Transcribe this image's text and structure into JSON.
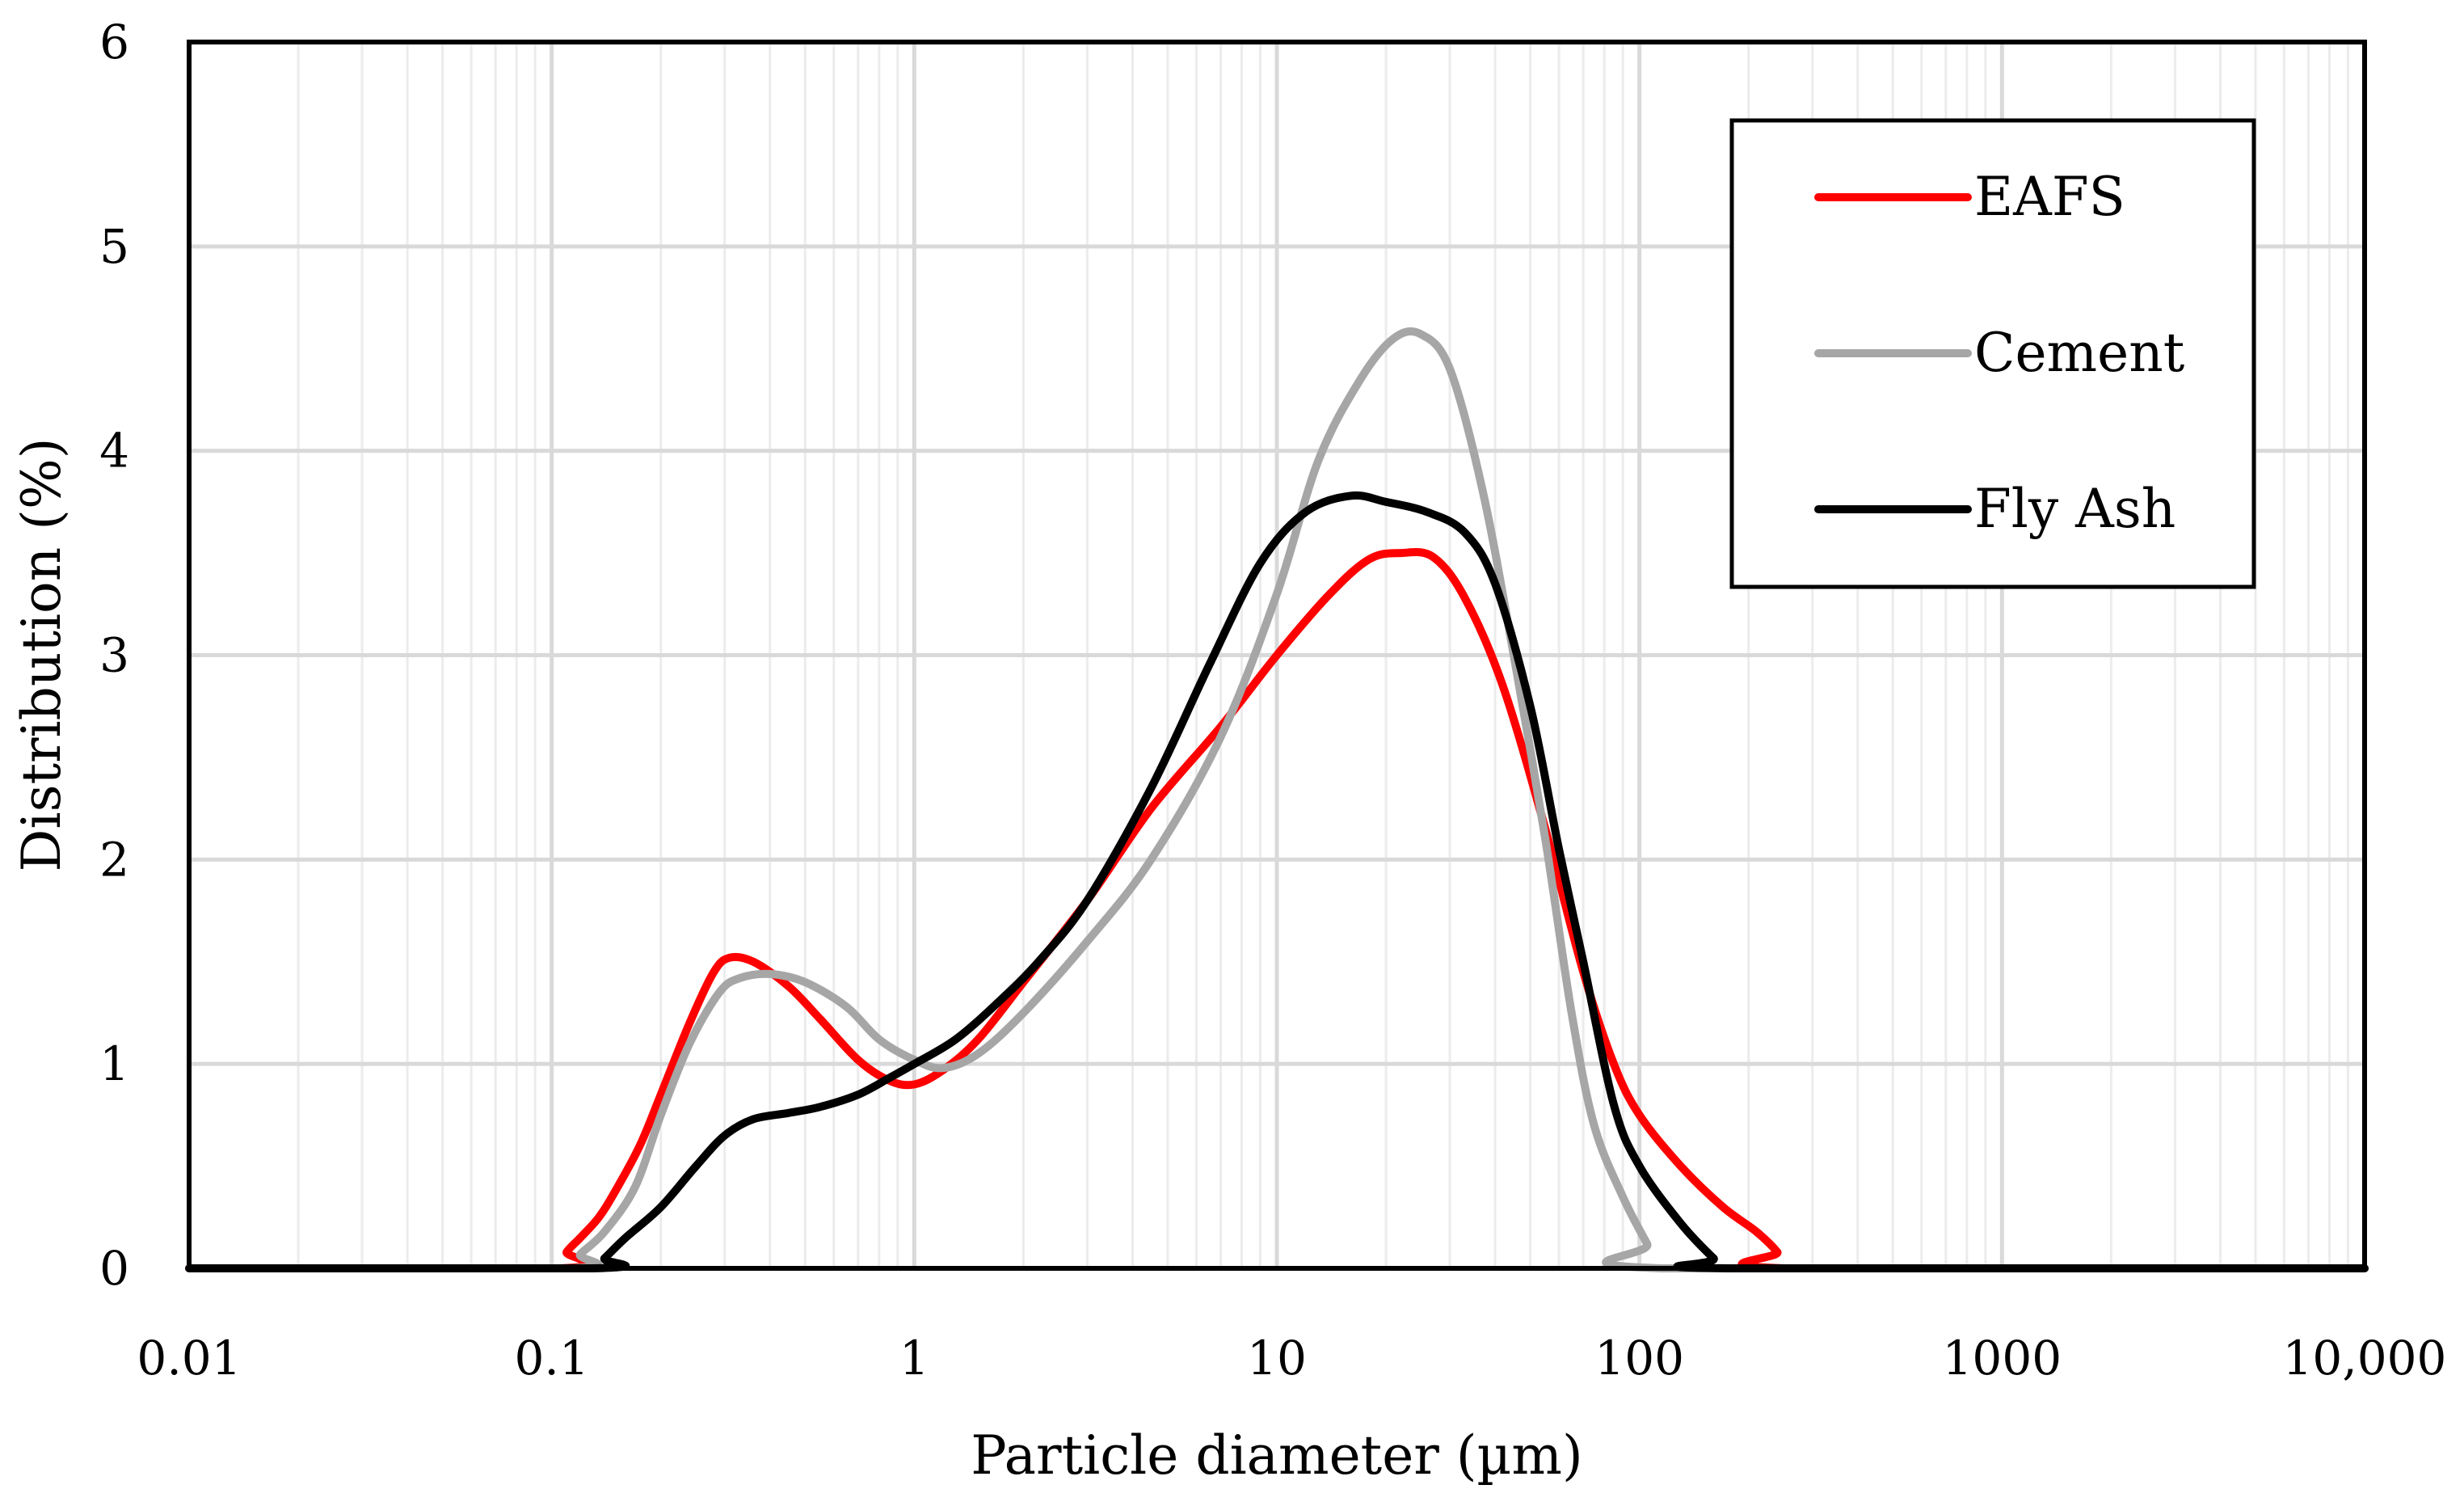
{
  "chart_data": {
    "type": "line",
    "title": "",
    "xlabel": "Particle diameter (µm)",
    "ylabel": "Distribution (%)",
    "xscale": "log",
    "xlim": [
      0.01,
      10000
    ],
    "ylim": [
      0,
      6
    ],
    "grid": true,
    "legend_position": "top-right",
    "x_ticks": [
      {
        "value": 0.01,
        "label": "0.01"
      },
      {
        "value": 0.1,
        "label": "0.1"
      },
      {
        "value": 1,
        "label": "1"
      },
      {
        "value": 10,
        "label": "10"
      },
      {
        "value": 100,
        "label": "100"
      },
      {
        "value": 1000,
        "label": "1000"
      },
      {
        "value": 10000,
        "label": "10,000"
      }
    ],
    "y_ticks": [
      {
        "value": 0,
        "label": "0"
      },
      {
        "value": 1,
        "label": "1"
      },
      {
        "value": 2,
        "label": "2"
      },
      {
        "value": 3,
        "label": "3"
      },
      {
        "value": 4,
        "label": "4"
      },
      {
        "value": 5,
        "label": "5"
      },
      {
        "value": 6,
        "label": "6"
      }
    ],
    "series": [
      {
        "name": "EAFS",
        "color": "#ff0000",
        "points": [
          [
            0.01,
            0
          ],
          [
            0.105,
            0
          ],
          [
            0.11,
            0.08
          ],
          [
            0.12,
            0.15
          ],
          [
            0.135,
            0.25
          ],
          [
            0.15,
            0.38
          ],
          [
            0.175,
            0.6
          ],
          [
            0.2,
            0.85
          ],
          [
            0.24,
            1.2
          ],
          [
            0.28,
            1.45
          ],
          [
            0.31,
            1.52
          ],
          [
            0.36,
            1.5
          ],
          [
            0.45,
            1.38
          ],
          [
            0.55,
            1.22
          ],
          [
            0.7,
            1.02
          ],
          [
            0.85,
            0.92
          ],
          [
            1.0,
            0.9
          ],
          [
            1.2,
            0.97
          ],
          [
            1.5,
            1.12
          ],
          [
            2.0,
            1.4
          ],
          [
            3.0,
            1.8
          ],
          [
            4.5,
            2.25
          ],
          [
            7.0,
            2.65
          ],
          [
            10.0,
            3.0
          ],
          [
            14.0,
            3.3
          ],
          [
            18.0,
            3.47
          ],
          [
            22.0,
            3.5
          ],
          [
            27.0,
            3.48
          ],
          [
            33.0,
            3.28
          ],
          [
            42.0,
            2.85
          ],
          [
            55.0,
            2.15
          ],
          [
            70.0,
            1.45
          ],
          [
            85.0,
            1.0
          ],
          [
            100.0,
            0.75
          ],
          [
            130.0,
            0.5
          ],
          [
            170.0,
            0.3
          ],
          [
            210.0,
            0.18
          ],
          [
            240.0,
            0.08
          ],
          [
            255.0,
            0
          ],
          [
            10000,
            0
          ]
        ]
      },
      {
        "name": "Cement",
        "color": "#a6a6a6",
        "points": [
          [
            0.01,
            0
          ],
          [
            0.11,
            0
          ],
          [
            0.12,
            0.07
          ],
          [
            0.14,
            0.18
          ],
          [
            0.17,
            0.4
          ],
          [
            0.2,
            0.75
          ],
          [
            0.24,
            1.1
          ],
          [
            0.29,
            1.35
          ],
          [
            0.33,
            1.42
          ],
          [
            0.4,
            1.44
          ],
          [
            0.5,
            1.4
          ],
          [
            0.65,
            1.28
          ],
          [
            0.8,
            1.12
          ],
          [
            1.0,
            1.02
          ],
          [
            1.2,
            0.98
          ],
          [
            1.5,
            1.05
          ],
          [
            2.0,
            1.25
          ],
          [
            3.0,
            1.6
          ],
          [
            4.5,
            2.0
          ],
          [
            7.0,
            2.6
          ],
          [
            10.0,
            3.3
          ],
          [
            13.0,
            3.95
          ],
          [
            17.0,
            4.35
          ],
          [
            21.0,
            4.55
          ],
          [
            25.0,
            4.57
          ],
          [
            30.0,
            4.4
          ],
          [
            37.0,
            3.8
          ],
          [
            45.0,
            3.0
          ],
          [
            55.0,
            2.1
          ],
          [
            65.0,
            1.25
          ],
          [
            75.0,
            0.7
          ],
          [
            90.0,
            0.35
          ],
          [
            105.0,
            0.12
          ],
          [
            115.0,
            0
          ],
          [
            10000,
            0
          ]
        ]
      },
      {
        "name": "Fly Ash",
        "color": "#000000",
        "points": [
          [
            0.01,
            0
          ],
          [
            0.13,
            0
          ],
          [
            0.14,
            0.05
          ],
          [
            0.16,
            0.15
          ],
          [
            0.2,
            0.3
          ],
          [
            0.25,
            0.5
          ],
          [
            0.3,
            0.65
          ],
          [
            0.36,
            0.73
          ],
          [
            0.45,
            0.76
          ],
          [
            0.55,
            0.79
          ],
          [
            0.7,
            0.85
          ],
          [
            0.85,
            0.93
          ],
          [
            1.0,
            1.0
          ],
          [
            1.3,
            1.12
          ],
          [
            1.7,
            1.3
          ],
          [
            2.2,
            1.5
          ],
          [
            3.0,
            1.8
          ],
          [
            4.5,
            2.35
          ],
          [
            6.5,
            2.95
          ],
          [
            9.0,
            3.45
          ],
          [
            12.0,
            3.7
          ],
          [
            16.0,
            3.78
          ],
          [
            20.0,
            3.75
          ],
          [
            26.0,
            3.7
          ],
          [
            33.0,
            3.6
          ],
          [
            40.0,
            3.35
          ],
          [
            50.0,
            2.75
          ],
          [
            60.0,
            2.05
          ],
          [
            70.0,
            1.5
          ],
          [
            85.0,
            0.8
          ],
          [
            100.0,
            0.5
          ],
          [
            130.0,
            0.22
          ],
          [
            160.0,
            0.05
          ],
          [
            175.0,
            0
          ],
          [
            10000,
            0
          ]
        ]
      }
    ]
  }
}
